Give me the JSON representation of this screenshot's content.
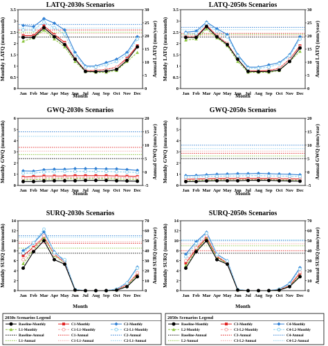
{
  "colors": {
    "Baseline-Monthly": "#000000",
    "Baseline-Annual": "#000000",
    "C1-Monthly": "#e02020",
    "C1-Annual": "#e02020",
    "C2-Monthly": "#2f7fd4",
    "C2-Annual": "#2f7fd4",
    "L1-Monthly": "#8cc63f",
    "L1-Annual": "#8cc63f",
    "C1-L1-Monthly": "#f4a6a6",
    "C1-L1-Annual": "#f4a6a6",
    "C2-L1-Monthly": "#8fd2f0",
    "C2-L1-Annual": "#8fd2f0",
    "C3-Monthly": "#e02020",
    "C3-Annual": "#e02020",
    "C4-Monthly": "#2f7fd4",
    "C4-Annual": "#2f7fd4",
    "L2-Monthly": "#8cc63f",
    "L2-Annual": "#8cc63f",
    "C3-L2-Monthly": "#f4a6a6",
    "C3-L2-Annual": "#f4a6a6",
    "C4-L2-Monthly": "#8fd2f0",
    "C4-L2-Annual": "#8fd2f0"
  },
  "chart_data": [
    {
      "type": "line",
      "title": "LATQ-2030s Scenarios",
      "xlabel": "Month",
      "ylabel": "Monthly LATQ (mm/month)",
      "ylabel2": "Annual LATQ (mm/year)",
      "categories": [
        "Jan",
        "Feb",
        "Mar",
        "Apr",
        "May",
        "Jun",
        "Jul",
        "Aug",
        "Sep",
        "Oct",
        "Nov",
        "Dec"
      ],
      "ylim": [
        0,
        3.5
      ],
      "yticks": [
        0,
        0.5,
        1,
        1.5,
        2,
        2.5,
        3,
        3.5
      ],
      "y2lim": [
        0,
        30
      ],
      "y2ticks": [
        0,
        5,
        10,
        15,
        20,
        25,
        30
      ],
      "series": [
        {
          "name": "Baseline-Monthly",
          "values": [
            2.27,
            2.27,
            2.7,
            2.3,
            1.95,
            1.3,
            0.76,
            0.75,
            0.77,
            0.85,
            1.25,
            1.85
          ]
        },
        {
          "name": "C1-Monthly",
          "values": [
            2.35,
            2.35,
            2.78,
            2.4,
            2.05,
            1.33,
            0.8,
            0.8,
            0.85,
            0.95,
            1.35,
            1.9
          ]
        },
        {
          "name": "C2-Monthly",
          "values": [
            2.8,
            2.75,
            3.1,
            2.9,
            2.6,
            1.6,
            1.0,
            1.0,
            1.15,
            1.3,
            1.6,
            2.3
          ]
        },
        {
          "name": "L1-Monthly",
          "values": [
            2.1,
            2.25,
            2.6,
            2.2,
            1.85,
            1.2,
            0.75,
            0.72,
            0.72,
            0.8,
            1.2,
            1.6
          ]
        },
        {
          "name": "C1-L1-Monthly",
          "values": [
            2.3,
            2.3,
            2.7,
            2.35,
            2.0,
            1.32,
            0.8,
            0.82,
            0.85,
            0.95,
            1.3,
            1.85
          ]
        },
        {
          "name": "C2-L1-Monthly",
          "values": [
            2.6,
            2.6,
            2.95,
            2.7,
            2.4,
            1.5,
            0.95,
            0.95,
            1.05,
            1.2,
            1.5,
            2.2
          ]
        }
      ],
      "annual": [
        {
          "name": "Baseline-Annual",
          "value": 19.6
        },
        {
          "name": "C1-Annual",
          "value": 22.3
        },
        {
          "name": "C2-Annual",
          "value": 24.4
        },
        {
          "name": "L1-Annual",
          "value": 21.4
        },
        {
          "name": "C1-L1-Annual",
          "value": 20.9
        },
        {
          "name": "C2-L1-Annual",
          "value": 23.0
        }
      ]
    },
    {
      "type": "line",
      "title": "LATQ-2050s Scenarios",
      "xlabel": "Month",
      "ylabel": "Monthly LATQ (mm/month)",
      "ylabel2": "Annual LATQ (mm/year)",
      "categories": [
        "Jan",
        "Feb",
        "Mar",
        "Apr",
        "May",
        "Jun",
        "Jul",
        "Aug",
        "Sep",
        "Oct",
        "Nov",
        "Dec"
      ],
      "ylim": [
        0,
        3.5
      ],
      "yticks": [
        0,
        0.5,
        1,
        1.5,
        2,
        2.5,
        3,
        3.5
      ],
      "y2lim": [
        0,
        30
      ],
      "y2ticks": [
        0,
        5,
        10,
        15,
        20,
        25,
        30
      ],
      "series": [
        {
          "name": "Baseline-Monthly",
          "values": [
            2.27,
            2.27,
            2.75,
            2.3,
            1.95,
            1.3,
            0.76,
            0.75,
            0.76,
            0.82,
            1.2,
            1.8
          ]
        },
        {
          "name": "C3-Monthly",
          "values": [
            2.3,
            2.3,
            2.8,
            2.35,
            2.0,
            1.3,
            0.78,
            0.78,
            0.8,
            0.9,
            1.3,
            1.9
          ]
        },
        {
          "name": "C4-Monthly",
          "values": [
            2.5,
            2.55,
            2.95,
            2.65,
            2.4,
            1.5,
            0.95,
            0.95,
            1.05,
            1.15,
            1.5,
            2.3
          ]
        },
        {
          "name": "L2-Monthly",
          "values": [
            2.15,
            2.2,
            2.65,
            2.25,
            1.9,
            1.2,
            0.72,
            0.72,
            0.72,
            0.8,
            1.2,
            1.65
          ]
        },
        {
          "name": "C3-L2-Monthly",
          "values": [
            2.3,
            2.3,
            2.75,
            2.35,
            2.0,
            1.3,
            0.8,
            0.8,
            0.82,
            0.9,
            1.3,
            1.85
          ]
        },
        {
          "name": "C4-L2-Monthly",
          "values": [
            2.45,
            2.45,
            2.9,
            2.55,
            2.3,
            1.45,
            0.9,
            0.9,
            0.95,
            1.1,
            1.45,
            2.2
          ]
        }
      ],
      "annual": [
        {
          "name": "Baseline-Annual",
          "value": 19.6
        },
        {
          "name": "C3-Annual",
          "value": 21.0
        },
        {
          "name": "C4-Annual",
          "value": 23.3
        },
        {
          "name": "L2-Annual",
          "value": 20.6
        },
        {
          "name": "C3-L2-Annual",
          "value": 20.2
        },
        {
          "name": "C4-L2-Annual",
          "value": 22.4
        }
      ]
    },
    {
      "type": "line",
      "title": "GWQ-2030s Scenarios",
      "xlabel": "Month",
      "ylabel": "Monthly GWQ (mm/month)",
      "ylabel2": "Annual GWQ (mm/year)",
      "categories": [
        "Jan",
        "Feb",
        "Mar",
        "Apr",
        "May",
        "Jun",
        "Jul",
        "Aug",
        "Sep",
        "Oct",
        "Nov",
        "Dec"
      ],
      "ylim": [
        0,
        6
      ],
      "yticks": [
        0,
        1,
        2,
        3,
        4,
        5,
        6
      ],
      "y2lim": [
        -5,
        20
      ],
      "y2ticks": [
        -5,
        0,
        5,
        10,
        15,
        20
      ],
      "series": [
        {
          "name": "Baseline-Monthly",
          "values": [
            0.35,
            0.35,
            0.4,
            0.42,
            0.42,
            0.42,
            0.45,
            0.45,
            0.45,
            0.42,
            0.4,
            0.38
          ]
        },
        {
          "name": "C1-Monthly",
          "values": [
            0.75,
            0.8,
            0.85,
            0.85,
            0.85,
            0.88,
            0.88,
            0.88,
            0.88,
            0.85,
            0.83,
            0.8
          ]
        },
        {
          "name": "C2-Monthly",
          "values": [
            1.3,
            1.28,
            1.4,
            1.45,
            1.45,
            1.5,
            1.5,
            1.5,
            1.48,
            1.48,
            1.42,
            1.35
          ]
        },
        {
          "name": "L1-Monthly",
          "values": [
            0.5,
            0.52,
            0.55,
            0.58,
            0.6,
            0.6,
            0.6,
            0.6,
            0.6,
            0.58,
            0.55,
            0.55
          ]
        },
        {
          "name": "C1-L1-Monthly",
          "values": [
            0.65,
            0.66,
            0.7,
            0.72,
            0.72,
            0.72,
            0.72,
            0.72,
            0.72,
            0.72,
            0.7,
            0.7
          ]
        },
        {
          "name": "C2-L1-Monthly",
          "values": [
            1.1,
            1.1,
            1.2,
            1.22,
            1.25,
            1.25,
            1.25,
            1.25,
            1.25,
            1.22,
            1.2,
            1.15
          ]
        }
      ],
      "annual": [
        {
          "name": "Baseline-Annual",
          "value": 5.0
        },
        {
          "name": "C1-Annual",
          "value": 9.2
        },
        {
          "name": "C2-Annual",
          "value": 15.0
        },
        {
          "name": "L1-Annual",
          "value": 6.5
        },
        {
          "name": "C1-L1-Annual",
          "value": 7.8
        },
        {
          "name": "C2-L1-Annual",
          "value": 13.3
        }
      ]
    },
    {
      "type": "line",
      "title": "GWQ-2050s Scenarios",
      "xlabel": "Month",
      "ylabel": "Monthly GWQ (mm/month)",
      "ylabel2": "Annual GWQ (mm/year)",
      "categories": [
        "Jan",
        "Feb",
        "Mar",
        "Apr",
        "May",
        "Jun",
        "Jul",
        "Aug",
        "Sep",
        "Oct",
        "Nov",
        "Dec"
      ],
      "ylim": [
        0,
        6
      ],
      "yticks": [
        0,
        1,
        2,
        3,
        4,
        5,
        6
      ],
      "y2lim": [
        -5,
        20
      ],
      "y2ticks": [
        -5,
        0,
        5,
        10,
        15,
        20
      ],
      "series": [
        {
          "name": "Baseline-Monthly",
          "values": [
            0.35,
            0.35,
            0.4,
            0.42,
            0.42,
            0.42,
            0.45,
            0.45,
            0.45,
            0.42,
            0.4,
            0.38
          ]
        },
        {
          "name": "C3-Monthly",
          "values": [
            0.55,
            0.58,
            0.6,
            0.62,
            0.62,
            0.62,
            0.62,
            0.62,
            0.62,
            0.6,
            0.6,
            0.58
          ]
        },
        {
          "name": "C4-Monthly",
          "values": [
            0.88,
            0.9,
            0.95,
            1.0,
            1.02,
            1.05,
            1.05,
            1.08,
            1.05,
            1.02,
            1.0,
            0.95
          ]
        },
        {
          "name": "L2-Monthly",
          "values": [
            0.45,
            0.45,
            0.5,
            0.5,
            0.52,
            0.52,
            0.52,
            0.52,
            0.52,
            0.5,
            0.5,
            0.48
          ]
        },
        {
          "name": "C3-L2-Monthly",
          "values": [
            0.5,
            0.5,
            0.55,
            0.55,
            0.56,
            0.56,
            0.56,
            0.56,
            0.56,
            0.55,
            0.55,
            0.52
          ]
        },
        {
          "name": "C4-L2-Monthly",
          "values": [
            0.75,
            0.75,
            0.8,
            0.82,
            0.85,
            0.85,
            0.88,
            0.88,
            0.85,
            0.85,
            0.82,
            0.8
          ]
        }
      ],
      "annual": [
        {
          "name": "Baseline-Annual",
          "value": 5.0
        },
        {
          "name": "C3-Annual",
          "value": 7.0
        },
        {
          "name": "C4-Annual",
          "value": 10.0
        },
        {
          "name": "L2-Annual",
          "value": 6.0
        },
        {
          "name": "C3-L2-Annual",
          "value": 7.8
        },
        {
          "name": "C4-L2-Annual",
          "value": 8.7
        }
      ]
    },
    {
      "type": "line",
      "title": "SURQ-2030s Scenarios",
      "xlabel": "Month",
      "ylabel": "Monthly SURQ (mm/month)",
      "ylabel2": "Annual SURQ (mm/year)",
      "categories": [
        "Jan",
        "Feb",
        "Mar",
        "Apr",
        "May",
        "Jun",
        "Jul",
        "Aug",
        "Sep",
        "Oct",
        "Nov",
        "Dec"
      ],
      "ylim": [
        0,
        14
      ],
      "yticks": [
        0,
        2,
        4,
        6,
        8,
        10,
        12,
        14
      ],
      "y2lim": [
        0,
        70
      ],
      "y2ticks": [
        0,
        10,
        20,
        30,
        40,
        50,
        60,
        70
      ],
      "series": [
        {
          "name": "Baseline-Monthly",
          "values": [
            4.5,
            7.8,
            10.0,
            6.2,
            5.3,
            0.1,
            0.0,
            0.0,
            0.0,
            0.1,
            0.8,
            2.8
          ]
        },
        {
          "name": "C1-Monthly",
          "values": [
            7.0,
            8.7,
            10.8,
            7.3,
            5.6,
            0.1,
            0.0,
            0.0,
            0.0,
            0.2,
            1.2,
            3.4
          ]
        },
        {
          "name": "C2-Monthly",
          "values": [
            8.0,
            9.5,
            11.8,
            7.8,
            5.9,
            0.2,
            0.0,
            0.0,
            0.0,
            0.3,
            1.6,
            4.7
          ]
        },
        {
          "name": "L1-Monthly",
          "values": [
            5.4,
            8.2,
            10.6,
            7.0,
            5.5,
            0.1,
            0.0,
            0.0,
            0.0,
            0.1,
            1.0,
            3.1
          ]
        },
        {
          "name": "C1-L1-Monthly",
          "values": [
            6.2,
            8.4,
            11.0,
            7.2,
            5.6,
            0.1,
            0.0,
            0.0,
            0.0,
            0.2,
            1.1,
            3.6
          ]
        },
        {
          "name": "C2-L1-Monthly",
          "values": [
            7.5,
            9.6,
            12.3,
            7.6,
            6.2,
            0.2,
            0.0,
            0.0,
            0.0,
            0.3,
            1.5,
            4.5
          ]
        }
      ],
      "annual": [
        {
          "name": "Baseline-Annual",
          "value": 37.5
        },
        {
          "name": "C1-Annual",
          "value": 47.5
        },
        {
          "name": "C2-Annual",
          "value": 55.0
        },
        {
          "name": "L1-Annual",
          "value": 42.7
        },
        {
          "name": "C1-L1-Annual",
          "value": 49.0
        },
        {
          "name": "C2-L1-Annual",
          "value": 53.5
        }
      ]
    },
    {
      "type": "line",
      "title": "SURQ-2050s Scenarios",
      "xlabel": "Month",
      "ylabel": "Monthly SURQ (mm/month)",
      "ylabel2": "Annual SURQ (mm/year)",
      "categories": [
        "Jan",
        "Feb",
        "Mar",
        "Apr",
        "May",
        "Jun",
        "Jul",
        "Aug",
        "Sep",
        "Oct",
        "Nov",
        "Dec"
      ],
      "ylim": [
        0,
        14
      ],
      "yticks": [
        0,
        2,
        4,
        6,
        8,
        10,
        12,
        14
      ],
      "y2lim": [
        0,
        70
      ],
      "y2ticks": [
        0,
        10,
        20,
        30,
        40,
        50,
        60,
        70
      ],
      "series": [
        {
          "name": "Baseline-Monthly",
          "values": [
            4.5,
            7.8,
            10.0,
            6.2,
            5.3,
            0.1,
            0.0,
            0.0,
            0.0,
            0.1,
            0.8,
            2.8
          ]
        },
        {
          "name": "C3-Monthly",
          "values": [
            5.5,
            8.3,
            10.6,
            6.8,
            5.5,
            0.1,
            0.0,
            0.0,
            0.0,
            0.2,
            1.0,
            3.5
          ]
        },
        {
          "name": "C4-Monthly",
          "values": [
            7.3,
            9.8,
            11.7,
            7.3,
            6.0,
            0.2,
            0.0,
            0.0,
            0.0,
            0.3,
            1.5,
            4.6
          ]
        },
        {
          "name": "L2-Monthly",
          "values": [
            5.0,
            8.0,
            10.4,
            6.6,
            5.4,
            0.1,
            0.0,
            0.0,
            0.0,
            0.1,
            0.9,
            3.0
          ]
        },
        {
          "name": "C3-L2-Monthly",
          "values": [
            6.0,
            8.6,
            11.0,
            7.0,
            5.6,
            0.1,
            0.0,
            0.0,
            0.0,
            0.2,
            1.1,
            3.7
          ]
        },
        {
          "name": "C4-L2-Monthly",
          "values": [
            6.8,
            9.4,
            11.5,
            7.2,
            5.9,
            0.2,
            0.0,
            0.0,
            0.0,
            0.3,
            1.3,
            4.3
          ]
        }
      ],
      "annual": [
        {
          "name": "Baseline-Annual",
          "value": 37.5
        },
        {
          "name": "C3-Annual",
          "value": 40.0
        },
        {
          "name": "C4-Annual",
          "value": 50.0
        },
        {
          "name": "L2-Annual",
          "value": 45.0
        },
        {
          "name": "C3-L2-Annual",
          "value": 47.0
        },
        {
          "name": "C4-L2-Annual",
          "value": 51.0
        }
      ]
    }
  ],
  "legends": [
    {
      "title": "2030s Scenarios Legend",
      "rows": [
        [
          "Baseline-Monthly",
          "C1-Monthly",
          "C2-Monthly"
        ],
        [
          "L1-Monthly",
          "C1-L1-Monthly",
          "C2-L1-Monthly"
        ],
        [
          "Baseline-Annual",
          "C1-Annual",
          "C2-Annual"
        ],
        [
          "L1-Annual",
          "C1-L1-Annual",
          "C2-L1-Annual"
        ]
      ]
    },
    {
      "title": "2050s Scenarios Legend",
      "rows": [
        [
          "Baseline-Monthly",
          "C3-Monthly",
          "C4-Monthly"
        ],
        [
          "L2-Monthly",
          "C3-L2-Monthly",
          "C4-L2-Monthly"
        ],
        [
          "Baseline-Annual",
          "C3-Annual",
          "C4-Annual"
        ],
        [
          "L2-Annual",
          "C3-L2-Annual",
          "C4-L2-Annual"
        ]
      ]
    }
  ]
}
